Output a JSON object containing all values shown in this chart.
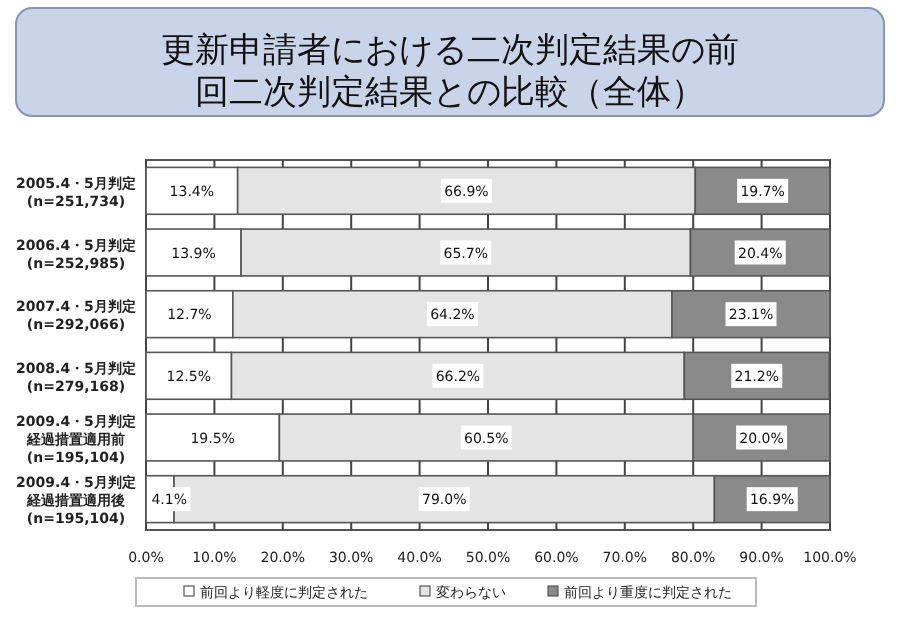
{
  "chart_data": {
    "type": "bar",
    "orientation": "horizontal",
    "stacked": true,
    "title": "更新申請者における二次判定結果の前回二次判定結果との比較（全体）",
    "categories": [
      "2005.4・5月判定(n=251,734)",
      "2006.4・5月判定(n=252,985)",
      "2007.4・5月判定(n=292,066)",
      "2008.4・5月判定(n=279,168)",
      "2009.4・5月判定経過措置適用前(n=195,104)",
      "2009.4・5月判定経過措置適用後(n=195,104)"
    ],
    "series": [
      {
        "name": "前回より軽度に判定された",
        "color": "#ffffff",
        "values": [
          13.4,
          13.9,
          12.7,
          12.5,
          19.5,
          4.1
        ],
        "value_labels": [
          "13.4%",
          "13.9%",
          "12.7%",
          "12.5%",
          "19.5%",
          "4.1%"
        ]
      },
      {
        "name": "変わらない",
        "color": "#e4e4e4",
        "values": [
          66.9,
          65.7,
          64.2,
          66.2,
          60.5,
          79.0
        ],
        "value_labels": [
          "66.9%",
          "65.7%",
          "64.2%",
          "66.2%",
          "60.5%",
          "79.0%"
        ]
      },
      {
        "name": "前回より重度に判定された",
        "color": "#8a8a8a",
        "values": [
          19.7,
          20.4,
          23.1,
          21.2,
          20.0,
          16.9
        ],
        "value_labels": [
          "19.7%",
          "20.4%",
          "23.1%",
          "21.2%",
          "20.0%",
          "16.9%"
        ]
      }
    ],
    "xlim": [
      0,
      100
    ],
    "xticks": [
      {
        "value": 0,
        "label": "0.0%"
      },
      {
        "value": 10,
        "label": "10.0%"
      },
      {
        "value": 20,
        "label": "20.0%"
      },
      {
        "value": 30,
        "label": "30.0%"
      },
      {
        "value": 40,
        "label": "40.0%"
      },
      {
        "value": 50,
        "label": "50.0%"
      },
      {
        "value": 60,
        "label": "60.0%"
      },
      {
        "value": 70,
        "label": "70.0%"
      },
      {
        "value": 80,
        "label": "80.0%"
      },
      {
        "value": 90,
        "label": "90.0%"
      },
      {
        "value": 100,
        "label": "100.0%"
      }
    ],
    "grid": "x",
    "legend": "bottom"
  }
}
